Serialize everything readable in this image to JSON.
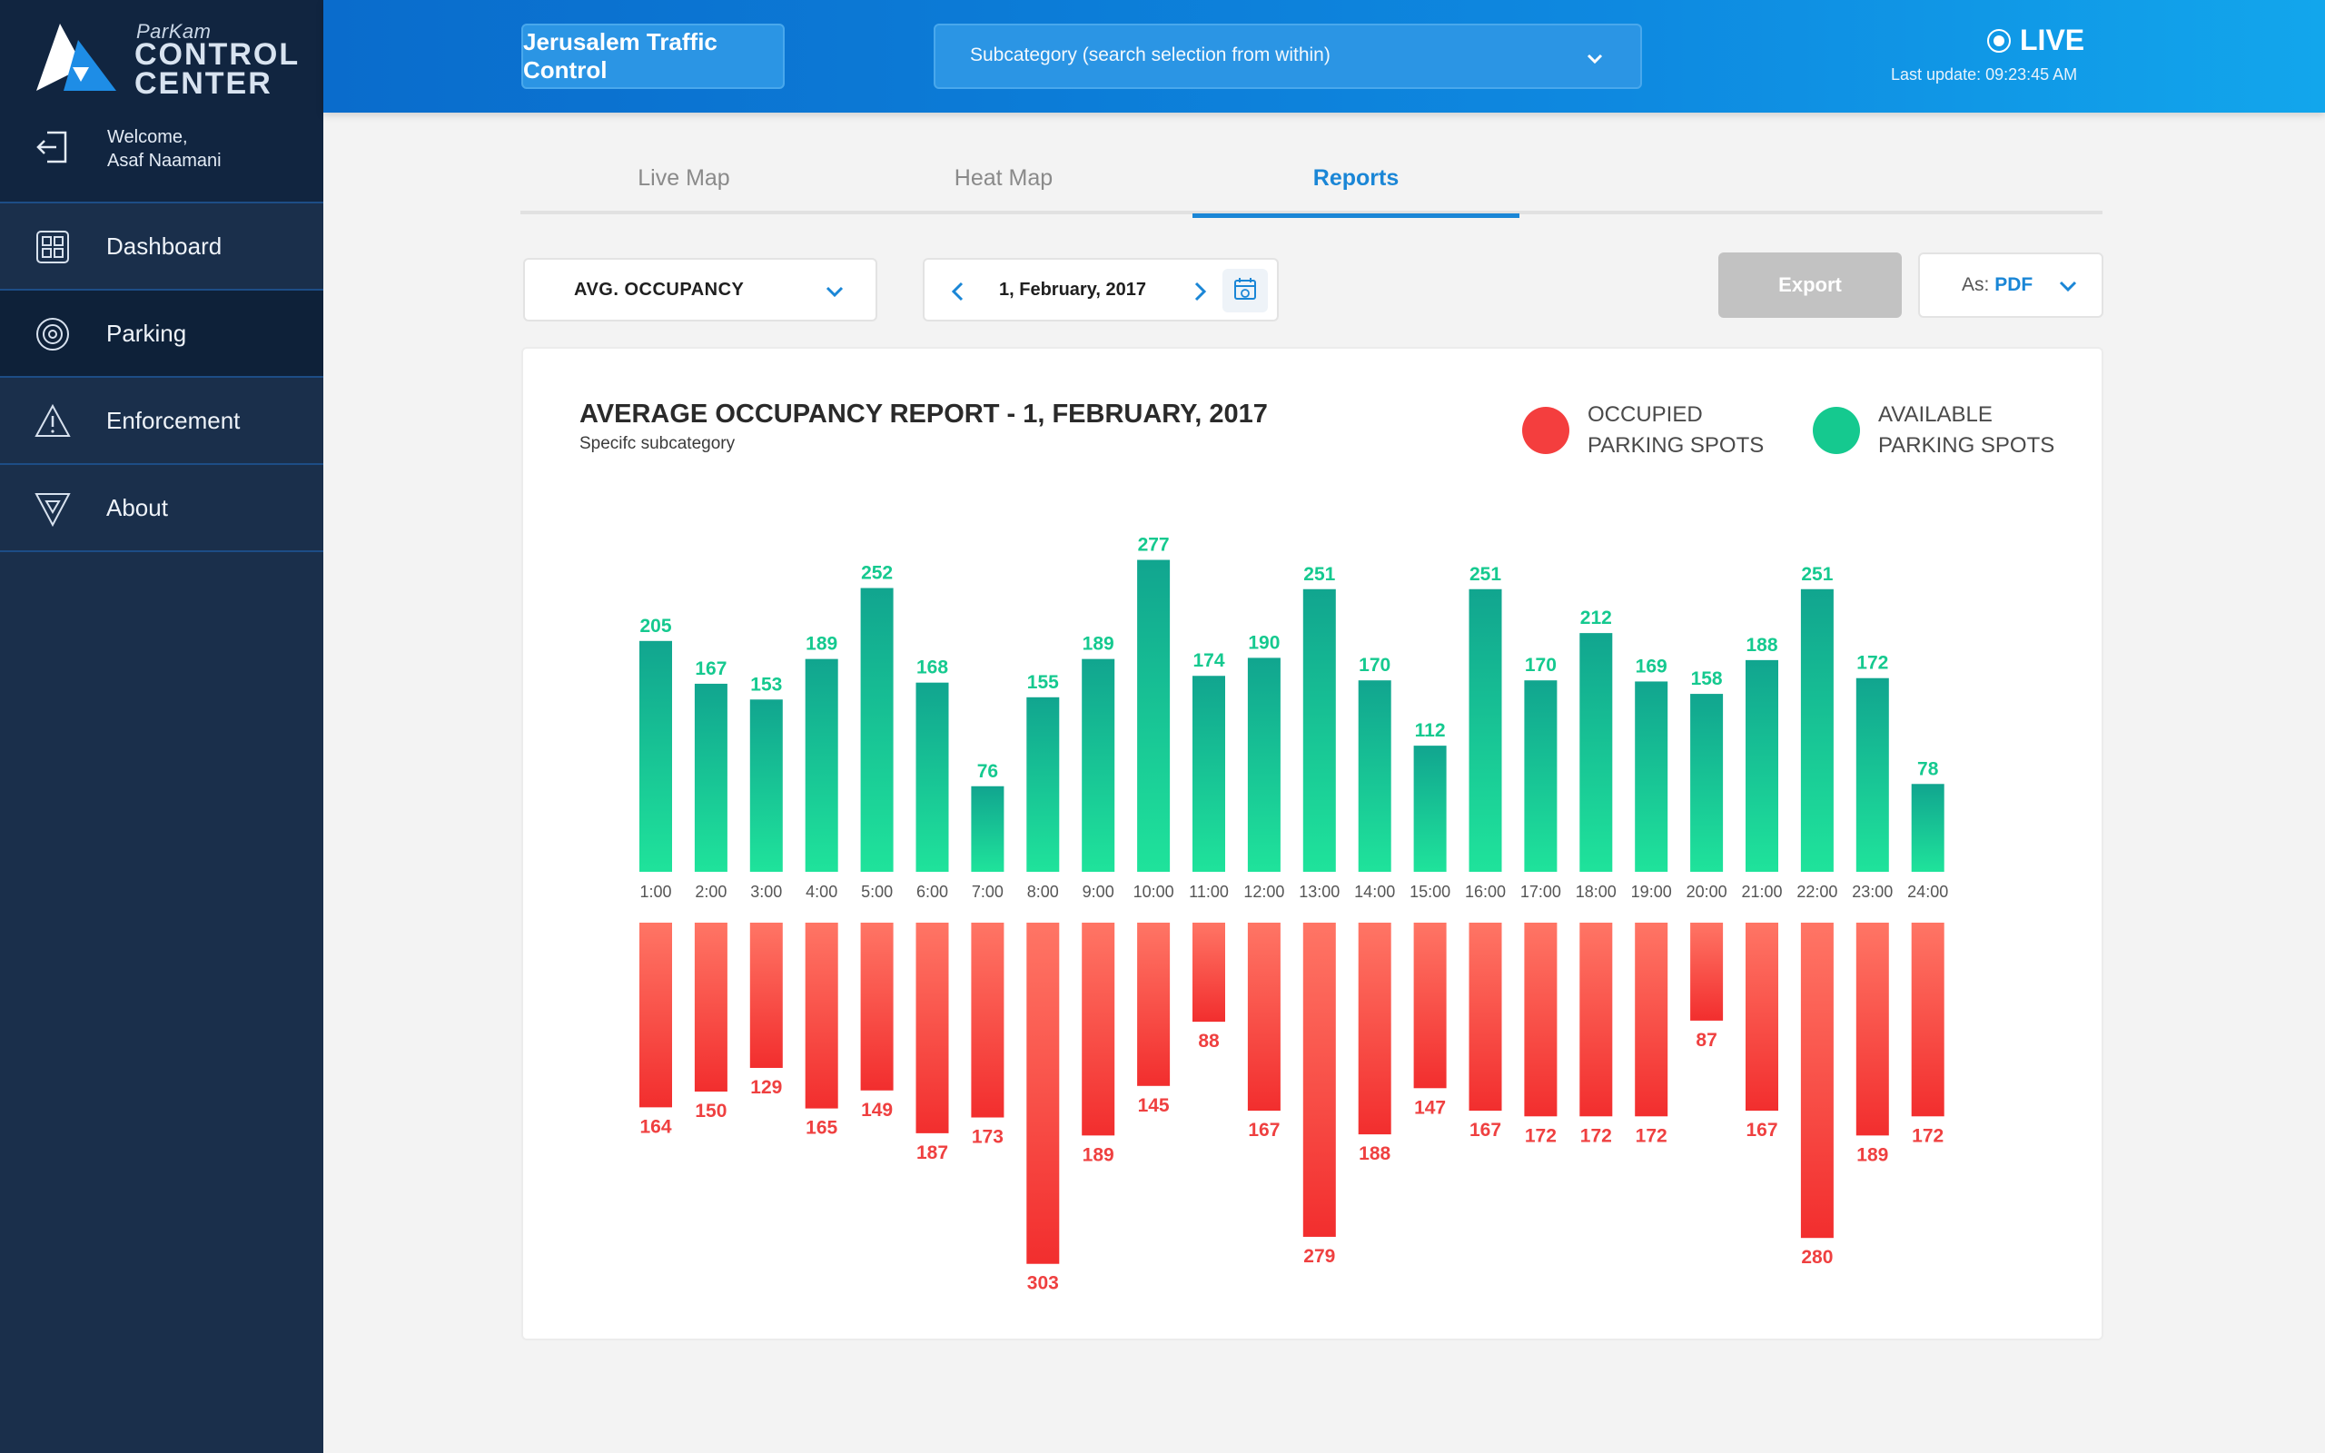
{
  "brand": {
    "small": "ParKam",
    "line1": "CONTROL",
    "line2": "CENTER"
  },
  "user": {
    "greeting": "Welcome,",
    "name": "Asaf Naamani"
  },
  "nav": [
    {
      "label": "Dashboard",
      "icon": "grid-icon"
    },
    {
      "label": "Parking",
      "icon": "target-icon"
    },
    {
      "label": "Enforcement",
      "icon": "warning-icon"
    },
    {
      "label": "About",
      "icon": "logo-shield-icon"
    }
  ],
  "header": {
    "category": "Jerusalem Traffic Control",
    "subcategory_placeholder": "Subcategory (search selection from within)",
    "live": "LIVE",
    "last_update": "Last update:  09:23:45 AM"
  },
  "tabs": [
    "Live Map",
    "Heat Map",
    "Reports"
  ],
  "controls": {
    "metric": "AVG. OCCUPANCY",
    "date": "1, February, 2017",
    "export": "Export",
    "as_label": "As:",
    "as_value": "PDF"
  },
  "colors": {
    "accent": "#1a86d6",
    "available": "#15c98f",
    "occupied": "#f43e3e",
    "sidebar": "#1a2f4b"
  },
  "chart_data": {
    "type": "bar",
    "title": "AVERAGE OCCUPANCY REPORT - 1, FEBRUARY, 2017",
    "subtitle": "Specifc subcategory",
    "categories": [
      "1:00",
      "2:00",
      "3:00",
      "4:00",
      "5:00",
      "6:00",
      "7:00",
      "8:00",
      "9:00",
      "10:00",
      "11:00",
      "12:00",
      "13:00",
      "14:00",
      "15:00",
      "16:00",
      "17:00",
      "18:00",
      "19:00",
      "20:00",
      "21:00",
      "22:00",
      "23:00",
      "24:00"
    ],
    "series": [
      {
        "name": "AVAILABLE PARKING SPOTS",
        "values": [
          205,
          167,
          153,
          189,
          252,
          168,
          76,
          155,
          189,
          277,
          174,
          190,
          251,
          170,
          112,
          251,
          170,
          212,
          169,
          158,
          188,
          251,
          172,
          78
        ]
      },
      {
        "name": "OCCUPIED PARKING SPOTS",
        "values": [
          164,
          150,
          129,
          165,
          149,
          187,
          173,
          303,
          189,
          145,
          88,
          167,
          279,
          188,
          147,
          167,
          172,
          172,
          172,
          87,
          167,
          280,
          189,
          172
        ]
      }
    ],
    "legend": [
      {
        "line1": "OCCUPIED",
        "line2": "PARKING SPOTS",
        "color": "#f43e3e"
      },
      {
        "line1": "AVAILABLE",
        "line2": "PARKING SPOTS",
        "color": "#15c98f"
      }
    ],
    "legend_position": "top-right"
  }
}
